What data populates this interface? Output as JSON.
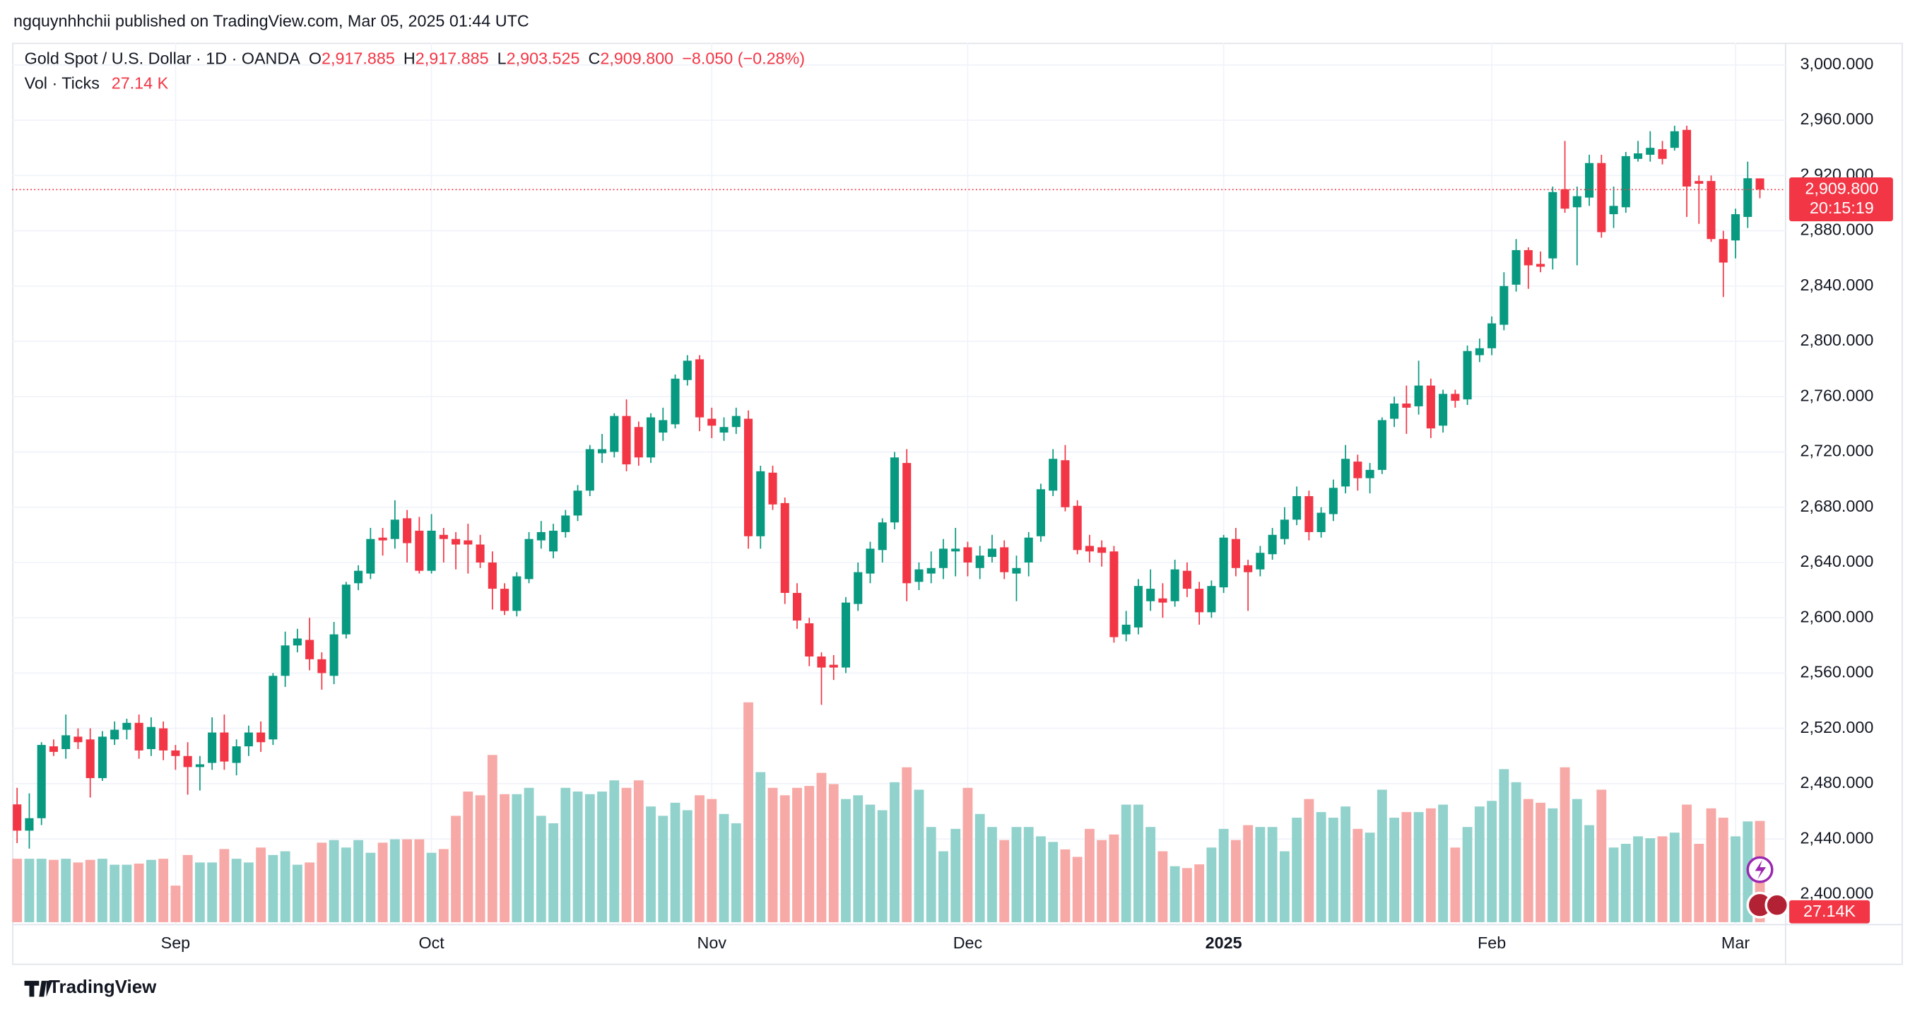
{
  "header": {
    "published": "ngquynhhchii published on TradingView.com, Mar 05, 2025 01:44 UTC"
  },
  "footer": {
    "brand": "TradingView"
  },
  "chart_data": {
    "type": "candlestick",
    "title": "Gold Spot / U.S. Dollar · 1D · OANDA",
    "legend": [
      {
        "key": "O",
        "value": "2,917.885"
      },
      {
        "key": "H",
        "value": "2,917.885"
      },
      {
        "key": "L",
        "value": "2,903.525"
      },
      {
        "key": "C",
        "value": "2,909.800"
      }
    ],
    "change": "−8.050 (−0.28%)",
    "volume_legend": {
      "name": "Vol · Ticks",
      "value": "27.14 K"
    },
    "last_price": {
      "label": "2,909.800",
      "countdown": "20:15:19"
    },
    "last_volume_label": "27.14K",
    "up_color": "#089981",
    "down_color": "#f23645",
    "up_volume_color": "#92d2cc",
    "down_volume_color": "#f7a9a7",
    "grid": true,
    "ylim": [
      2378,
      3016
    ],
    "yticks": [
      {
        "value": 2400,
        "label": "2,400.000"
      },
      {
        "value": 2440,
        "label": "2,440.000"
      },
      {
        "value": 2480,
        "label": "2,480.000"
      },
      {
        "value": 2520,
        "label": "2,520.000"
      },
      {
        "value": 2560,
        "label": "2,560.000"
      },
      {
        "value": 2600,
        "label": "2,600.000"
      },
      {
        "value": 2640,
        "label": "2,640.000"
      },
      {
        "value": 2680,
        "label": "2,680.000"
      },
      {
        "value": 2720,
        "label": "2,720.000"
      },
      {
        "value": 2760,
        "label": "2,760.000"
      },
      {
        "value": 2800,
        "label": "2,800.000"
      },
      {
        "value": 2840,
        "label": "2,840.000"
      },
      {
        "value": 2880,
        "label": "2,880.000"
      },
      {
        "value": 2920,
        "label": "2,920.000"
      },
      {
        "value": 2960,
        "label": "2,960.000"
      },
      {
        "value": 3000,
        "label": "3,000.000"
      }
    ],
    "categories": [
      null,
      null,
      null,
      null,
      null,
      null,
      null,
      null,
      null,
      null,
      null,
      null,
      null,
      "Sep",
      null,
      null,
      null,
      null,
      null,
      null,
      null,
      null,
      null,
      null,
      null,
      null,
      null,
      null,
      null,
      null,
      null,
      null,
      null,
      null,
      "Oct",
      null,
      null,
      null,
      null,
      null,
      null,
      null,
      null,
      null,
      null,
      null,
      null,
      null,
      null,
      null,
      null,
      null,
      null,
      null,
      null,
      null,
      null,
      "Nov",
      null,
      null,
      null,
      null,
      null,
      null,
      null,
      null,
      null,
      null,
      null,
      null,
      null,
      null,
      null,
      null,
      null,
      null,
      null,
      null,
      "Dec",
      null,
      null,
      null,
      null,
      null,
      null,
      null,
      null,
      null,
      null,
      null,
      null,
      null,
      null,
      null,
      null,
      null,
      null,
      null,
      null,
      "2025",
      null,
      null,
      null,
      null,
      null,
      null,
      null,
      null,
      null,
      null,
      null,
      null,
      null,
      null,
      null,
      null,
      null,
      null,
      null,
      null,
      null,
      "Feb",
      null,
      null,
      null,
      null,
      null,
      null,
      null,
      null,
      null,
      null,
      null,
      null,
      null,
      null,
      null,
      null,
      null,
      null,
      null,
      "Mar",
      null,
      null
    ],
    "open": [
      2465,
      2446,
      2455,
      2507,
      2505,
      2514,
      2512,
      2484,
      2512,
      2519,
      2524,
      2505,
      2520,
      2504,
      2500,
      2492,
      2495,
      2517,
      2495,
      2507,
      2517,
      2512,
      2558,
      2580,
      2584,
      2570,
      2558,
      2588,
      2625,
      2632,
      2658,
      2657,
      2672,
      2663,
      2634,
      2660,
      2657,
      2656,
      2653,
      2640,
      2621,
      2605,
      2628,
      2656,
      2648,
      2662,
      2674,
      2692,
      2719,
      2720,
      2746,
      2738,
      2716,
      2734,
      2740,
      2772,
      2787,
      2744,
      2734,
      2738,
      2744,
      2659,
      2705,
      2683,
      2618,
      2596,
      2572,
      2566,
      2564,
      2610,
      2632,
      2649,
      2669,
      2712,
      2626,
      2632,
      2636,
      2648,
      2651,
      2636,
      2644,
      2651,
      2632,
      2640,
      2659,
      2692,
      2714,
      2681,
      2652,
      2651,
      2648,
      2588,
      2593,
      2612,
      2614,
      2612,
      2634,
      2621,
      2604,
      2622,
      2657,
      2638,
      2635,
      2646,
      2657,
      2671,
      2688,
      2662,
      2675,
      2695,
      2713,
      2701,
      2707,
      2744,
      2755,
      2753,
      2768,
      2739,
      2762,
      2758,
      2790,
      2795,
      2812,
      2841,
      2866,
      2856,
      2860,
      2910,
      2897,
      2904,
      2929,
      2892,
      2897,
      2932,
      2935,
      2939,
      2940,
      2953,
      2916,
      2916,
      2874,
      2873,
      2890,
      2917.885
    ],
    "high": [
      2477,
      2473,
      2510,
      2512,
      2530,
      2520,
      2520,
      2518,
      2525,
      2527,
      2530,
      2528,
      2525,
      2508,
      2510,
      2500,
      2528,
      2530,
      2512,
      2522,
      2525,
      2560,
      2590,
      2592,
      2600,
      2575,
      2597,
      2626,
      2638,
      2665,
      2665,
      2685,
      2678,
      2673,
      2675,
      2665,
      2662,
      2668,
      2660,
      2648,
      2625,
      2633,
      2662,
      2670,
      2668,
      2678,
      2696,
      2725,
      2733,
      2748,
      2758,
      2742,
      2748,
      2752,
      2776,
      2790,
      2790,
      2752,
      2745,
      2752,
      2750,
      2710,
      2710,
      2687,
      2625,
      2600,
      2575,
      2573,
      2615,
      2640,
      2655,
      2672,
      2720,
      2722,
      2640,
      2648,
      2657,
      2665,
      2655,
      2652,
      2660,
      2656,
      2645,
      2662,
      2697,
      2722,
      2725,
      2685,
      2660,
      2656,
      2652,
      2605,
      2628,
      2635,
      2625,
      2642,
      2640,
      2626,
      2627,
      2660,
      2665,
      2642,
      2652,
      2665,
      2680,
      2695,
      2692,
      2680,
      2700,
      2725,
      2718,
      2712,
      2745,
      2760,
      2768,
      2786,
      2773,
      2765,
      2765,
      2797,
      2802,
      2818,
      2850,
      2874,
      2868,
      2865,
      2912,
      2945,
      2912,
      2935,
      2935,
      2912,
      2937,
      2945,
      2952,
      2945,
      2956,
      2956,
      2920,
      2920,
      2880,
      2896,
      2930,
      2917.885
    ],
    "low": [
      2437,
      2433,
      2450,
      2500,
      2498,
      2505,
      2470,
      2482,
      2508,
      2512,
      2498,
      2500,
      2497,
      2490,
      2472,
      2475,
      2490,
      2490,
      2486,
      2500,
      2503,
      2508,
      2550,
      2575,
      2562,
      2548,
      2552,
      2585,
      2620,
      2628,
      2645,
      2650,
      2640,
      2632,
      2632,
      2640,
      2635,
      2632,
      2636,
      2606,
      2602,
      2601,
      2625,
      2650,
      2643,
      2658,
      2670,
      2688,
      2712,
      2716,
      2706,
      2710,
      2712,
      2728,
      2737,
      2768,
      2735,
      2730,
      2728,
      2733,
      2650,
      2650,
      2678,
      2610,
      2592,
      2565,
      2537,
      2555,
      2560,
      2605,
      2625,
      2640,
      2664,
      2612,
      2620,
      2625,
      2628,
      2630,
      2630,
      2628,
      2640,
      2628,
      2612,
      2630,
      2655,
      2688,
      2677,
      2646,
      2640,
      2637,
      2582,
      2583,
      2588,
      2605,
      2600,
      2608,
      2615,
      2595,
      2600,
      2618,
      2630,
      2605,
      2630,
      2642,
      2653,
      2667,
      2656,
      2658,
      2670,
      2690,
      2692,
      2690,
      2704,
      2738,
      2733,
      2747,
      2730,
      2734,
      2752,
      2754,
      2785,
      2790,
      2808,
      2836,
      2838,
      2850,
      2852,
      2893,
      2855,
      2898,
      2875,
      2882,
      2893,
      2930,
      2930,
      2928,
      2938,
      2890,
      2885,
      2872,
      2832,
      2860,
      2882,
      2903.525
    ],
    "close": [
      2446,
      2455,
      2508,
      2503,
      2515,
      2510,
      2484,
      2514,
      2519,
      2524,
      2504,
      2521,
      2504,
      2500,
      2492,
      2494,
      2517,
      2496,
      2507,
      2517,
      2510,
      2558,
      2580,
      2585,
      2570,
      2560,
      2588,
      2624,
      2634,
      2657,
      2656,
      2671,
      2654,
      2634,
      2663,
      2657,
      2653,
      2653,
      2640,
      2621,
      2605,
      2630,
      2657,
      2662,
      2663,
      2674,
      2692,
      2722,
      2722,
      2746,
      2711,
      2716,
      2745,
      2743,
      2773,
      2786,
      2745,
      2739,
      2738,
      2746,
      2659,
      2706,
      2682,
      2618,
      2598,
      2572,
      2564,
      2564,
      2611,
      2633,
      2650,
      2669,
      2716,
      2625,
      2635,
      2636,
      2650,
      2650,
      2640,
      2645,
      2650,
      2633,
      2636,
      2658,
      2693,
      2715,
      2680,
      2649,
      2648,
      2647,
      2586,
      2595,
      2623,
      2621,
      2611,
      2635,
      2621,
      2604,
      2623,
      2658,
      2636,
      2633,
      2647,
      2660,
      2671,
      2688,
      2662,
      2676,
      2694,
      2715,
      2701,
      2707,
      2743,
      2755,
      2752,
      2768,
      2737,
      2762,
      2757,
      2793,
      2795,
      2813,
      2840,
      2866,
      2855,
      2854,
      2908,
      2896,
      2905,
      2929,
      2879,
      2898,
      2934,
      2936,
      2940,
      2932,
      2952,
      2912,
      2914,
      2874,
      2857,
      2892,
      2918,
      2909.8
    ],
    "volume": [
      17.0,
      17.0,
      17.0,
      16.7,
      17.0,
      16.0,
      16.7,
      17.0,
      15.4,
      15.4,
      15.7,
      16.7,
      17.0,
      9.8,
      18.0,
      16.0,
      16.0,
      19.6,
      17.0,
      16.0,
      20.0,
      18.0,
      19.0,
      15.4,
      16.0,
      21.3,
      22.0,
      20.0,
      22.0,
      18.6,
      21.3,
      22.2,
      22.2,
      22.2,
      18.6,
      19.6,
      28.5,
      35.0,
      34.0,
      44.8,
      34.3,
      34.3,
      36.0,
      28.5,
      26.5,
      36.0,
      35.0,
      34.3,
      35.0,
      38.0,
      36.0,
      38.0,
      31.0,
      28.5,
      32.0,
      30.0,
      34.0,
      33.0,
      29.0,
      26.5,
      58.9,
      40.2,
      36.0,
      34.0,
      36.0,
      36.5,
      40.0,
      37.0,
      33.0,
      34.0,
      31.5,
      30.0,
      37.5,
      41.5,
      35.5,
      25.5,
      19.0,
      25.0,
      36.0,
      29.0,
      25.5,
      22.0,
      25.5,
      25.5,
      23.0,
      21.5,
      19.5,
      17.5,
      25.0,
      22.0,
      23.5,
      31.5,
      31.5,
      25.5,
      19.0,
      15.0,
      14.5,
      15.5,
      20.0,
      25.0,
      22.0,
      26.0,
      25.5,
      25.5,
      19.0,
      28.0,
      33.0,
      29.5,
      28.0,
      31.0,
      25.0,
      24.0,
      35.5,
      28.0,
      29.5,
      29.5,
      30.5,
      31.5,
      20.0,
      25.5,
      31.0,
      32.5,
      41.0,
      37.5,
      33.0,
      32.0,
      30.5,
      41.5,
      33.0,
      26.0,
      35.5,
      20.0,
      21.0,
      23.0,
      22.5,
      23.0,
      24.0,
      31.5,
      21.0,
      30.5,
      28.0,
      23.0,
      27.0,
      27.14
    ]
  }
}
